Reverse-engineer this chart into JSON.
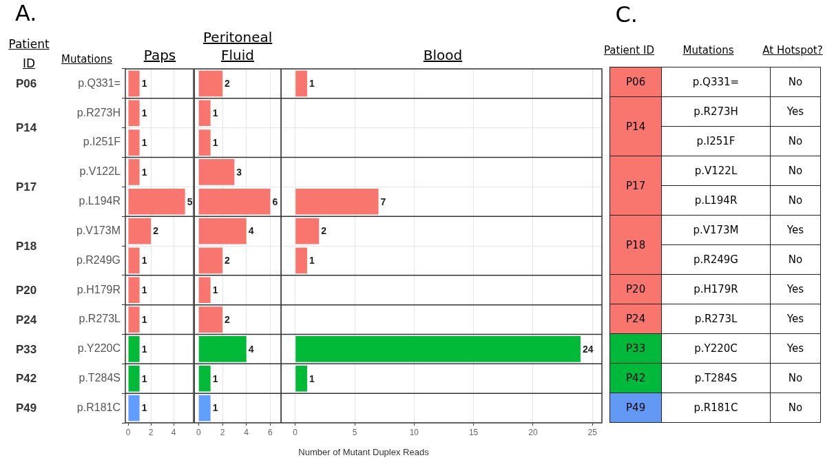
{
  "chart_data": [
    {
      "type": "bar",
      "orientation": "horizontal",
      "title": "Paps",
      "ylabel": "Mutations",
      "categories": [
        "p.Q331=",
        "p.R273H",
        "p.I251F",
        "p.V122L",
        "p.L194R",
        "p.V173M",
        "p.R249G",
        "p.H179R",
        "p.R273L",
        "p.Y220C",
        "p.T284S",
        "p.R181C"
      ],
      "values": [
        1,
        1,
        1,
        1,
        5,
        2,
        1,
        1,
        1,
        1,
        1,
        1
      ],
      "colors": [
        "#f8766d",
        "#f8766d",
        "#f8766d",
        "#f8766d",
        "#f8766d",
        "#f8766d",
        "#f8766d",
        "#f8766d",
        "#f8766d",
        "#00ba38",
        "#00ba38",
        "#619cff"
      ],
      "xlim": [
        -0.25,
        5.75
      ],
      "xticks": [
        0,
        2,
        4
      ],
      "grid": true,
      "legend": false,
      "data_labels": true,
      "annotations": [
        "A.",
        "Patient ID",
        "P06",
        "P14",
        "P17",
        "P18",
        "P20",
        "P24",
        "P33",
        "P42",
        "P49"
      ]
    },
    {
      "type": "bar",
      "orientation": "horizontal",
      "title": "Peritoneal Fluid",
      "values": [
        2,
        1,
        1,
        3,
        6,
        4,
        2,
        1,
        2,
        4,
        1,
        1
      ],
      "categories": [
        null,
        null,
        null,
        null,
        null,
        null,
        null,
        null,
        null,
        null,
        null,
        null
      ],
      "colors": [
        "#f8766d",
        "#f8766d",
        "#f8766d",
        "#f8766d",
        "#f8766d",
        "#f8766d",
        "#f8766d",
        "#f8766d",
        "#f8766d",
        "#00ba38",
        "#00ba38",
        "#619cff"
      ],
      "xlim": [
        -0.35,
        6.9
      ],
      "xticks": [
        0,
        2,
        4,
        6
      ],
      "grid": true,
      "legend": false,
      "data_labels": true,
      "tick_labels": "x"
    },
    {
      "type": "bar",
      "orientation": "horizontal",
      "title": "Blood",
      "xlabel": "Number of Mutant Duplex Reads",
      "values": [
        1,
        null,
        null,
        null,
        7,
        2,
        1,
        null,
        null,
        24,
        1,
        null
      ],
      "categories": [
        null,
        null,
        null,
        null,
        null,
        null,
        null,
        null,
        null,
        null,
        null,
        null
      ],
      "colors": [
        "#f8766d",
        "#f8766d",
        "#f8766d",
        "#f8766d",
        "#f8766d",
        "#f8766d",
        "#f8766d",
        "#f8766d",
        "#f8766d",
        "#00ba38",
        "#00ba38",
        "#619cff"
      ],
      "xlim": [
        -1.2,
        25.8
      ],
      "xticks": [
        0,
        5,
        10,
        15,
        20,
        25
      ],
      "grid": true,
      "legend": false,
      "data_labels": true,
      "tick_labels": "x"
    },
    {
      "type": "other",
      "title": "C.",
      "categories": [
        "Patient ID",
        "Mutations",
        "At Hotspot?"
      ],
      "y_categories": [
        "p.Q331=",
        "p.R273H",
        "p.I251F",
        "p.V122L",
        "p.L194R",
        "p.V173M",
        "p.R249G",
        "p.H179R",
        "p.R273L",
        "p.Y220C",
        "p.T284S",
        "p.R181C"
      ],
      "cell_labels": [
        [
          "P06",
          "No"
        ],
        [
          "P14",
          "Yes"
        ],
        [
          null,
          "No"
        ],
        [
          "P17",
          "No"
        ],
        [
          null,
          "No"
        ],
        [
          "P18",
          "Yes"
        ],
        [
          null,
          "No"
        ],
        [
          "P20",
          "Yes"
        ],
        [
          "P24",
          "Yes"
        ],
        [
          "P33",
          "Yes"
        ],
        [
          "P42",
          "No"
        ],
        [
          "P49",
          "No"
        ]
      ],
      "colors": [
        "#f8766d",
        "#f8766d",
        "#f8766d",
        "#f8766d",
        "#f8766d",
        "#f8766d",
        "#00b83a",
        "#00b83a",
        "#6199f5"
      ]
    }
  ]
}
